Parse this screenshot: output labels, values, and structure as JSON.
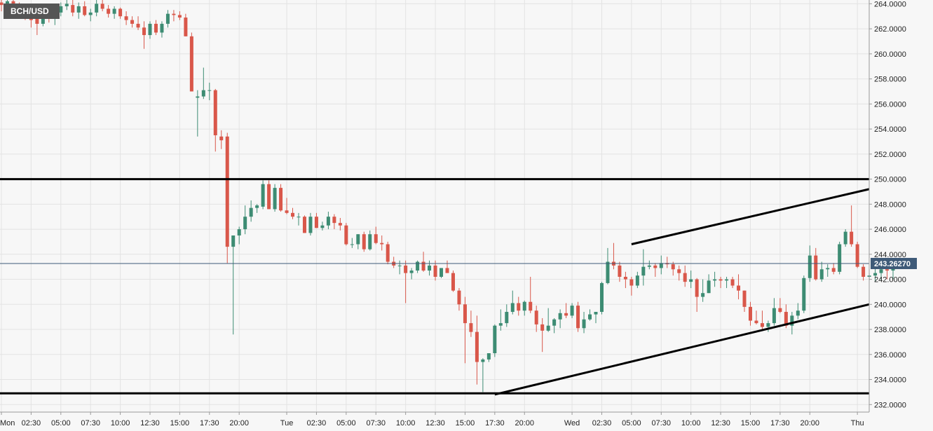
{
  "symbol": "BCH/USD",
  "chart_data": {
    "type": "candlestick",
    "ylim": [
      231.4,
      264.3
    ],
    "y_ticks": [
      264,
      262,
      260,
      258,
      256,
      254,
      252,
      250,
      248,
      246,
      244,
      242,
      240,
      238,
      236,
      234,
      232
    ],
    "y_tick_labels": [
      "264.0000",
      "262.0000",
      "260.0000",
      "258.0000",
      "256.0000",
      "254.0000",
      "252.0000",
      "250.0000",
      "248.0000",
      "246.0000",
      "244.0000",
      "242.0000",
      "240.0000",
      "238.0000",
      "236.0000",
      "234.0000",
      "232.0000"
    ],
    "x_labels": [
      "Mon",
      "02:30",
      "05:00",
      "07:30",
      "10:00",
      "12:30",
      "15:00",
      "17:30",
      "20:00",
      "Tue",
      "02:30",
      "05:00",
      "07:30",
      "10:00",
      "12:30",
      "15:00",
      "17:30",
      "20:00",
      "Wed",
      "02:30",
      "05:00",
      "07:30",
      "10:00",
      "12:30",
      "15:00",
      "17:30",
      "20:00",
      "Thu"
    ],
    "x_label_index": [
      0,
      5,
      10,
      15,
      20,
      25,
      30,
      35,
      40,
      48,
      53,
      58,
      63,
      68,
      73,
      78,
      83,
      88,
      96,
      101,
      106,
      111,
      116,
      121,
      126,
      131,
      136,
      144
    ],
    "candles": [
      [
        264.1,
        264.4,
        263.4,
        263.9
      ],
      [
        264.0,
        264.4,
        263.6,
        264.2
      ],
      [
        264.2,
        264.6,
        263.7,
        264.0
      ],
      [
        263.9,
        264.1,
        263.2,
        263.6
      ],
      [
        263.6,
        263.9,
        262.7,
        263.1
      ],
      [
        263.3,
        263.8,
        262.1,
        262.7
      ],
      [
        262.8,
        263.1,
        261.5,
        262.4
      ],
      [
        262.4,
        263.4,
        262.2,
        263.1
      ],
      [
        263.1,
        263.6,
        262.5,
        262.9
      ],
      [
        262.9,
        263.4,
        262.3,
        263.3
      ],
      [
        263.3,
        264.1,
        263.0,
        263.8
      ],
      [
        263.8,
        264.6,
        263.5,
        264.0
      ],
      [
        263.9,
        264.3,
        263.0,
        263.3
      ],
      [
        263.3,
        264.1,
        262.8,
        263.8
      ],
      [
        263.8,
        264.2,
        263.0,
        263.1
      ],
      [
        263.1,
        263.6,
        262.6,
        263.3
      ],
      [
        263.3,
        264.3,
        263.0,
        264.0
      ],
      [
        264.0,
        264.4,
        263.4,
        263.6
      ],
      [
        263.6,
        263.9,
        262.9,
        263.2
      ],
      [
        263.2,
        263.8,
        262.8,
        263.6
      ],
      [
        263.6,
        263.7,
        262.8,
        263.0
      ],
      [
        263.0,
        263.4,
        262.3,
        262.7
      ],
      [
        262.7,
        263.0,
        262.1,
        262.4
      ],
      [
        262.4,
        263.0,
        261.9,
        262.1
      ],
      [
        262.1,
        262.6,
        260.4,
        261.5
      ],
      [
        261.5,
        262.6,
        261.2,
        262.4
      ],
      [
        262.4,
        262.7,
        261.5,
        261.7
      ],
      [
        261.7,
        262.6,
        261.3,
        262.4
      ],
      [
        262.4,
        263.5,
        262.1,
        263.2
      ],
      [
        263.2,
        263.5,
        262.6,
        263.1
      ],
      [
        263.1,
        263.4,
        262.7,
        262.9
      ],
      [
        262.9,
        263.2,
        261.4,
        261.4
      ],
      [
        261.4,
        261.7,
        257.0,
        257.0
      ],
      [
        256.5,
        257.1,
        253.4,
        256.6
      ],
      [
        256.6,
        258.9,
        256.4,
        257.1
      ],
      [
        257.1,
        257.7,
        256.3,
        257.1
      ],
      [
        257.1,
        257.2,
        252.2,
        253.5
      ],
      [
        253.4,
        253.9,
        252.4,
        253.1
      ],
      [
        253.4,
        253.7,
        243.3,
        244.6
      ],
      [
        244.6,
        245.5,
        237.6,
        245.5
      ],
      [
        245.5,
        246.2,
        244.8,
        246.0
      ],
      [
        246.0,
        247.9,
        245.6,
        247.0
      ],
      [
        247.0,
        248.3,
        246.6,
        247.7
      ],
      [
        247.7,
        248.0,
        247.3,
        247.9
      ],
      [
        247.8,
        249.9,
        247.6,
        249.6
      ],
      [
        249.6,
        249.9,
        247.6,
        247.6
      ],
      [
        247.6,
        249.6,
        247.4,
        249.3
      ],
      [
        249.3,
        249.6,
        247.4,
        247.5
      ],
      [
        247.5,
        248.5,
        247.2,
        247.3
      ],
      [
        247.3,
        247.7,
        246.8,
        247.0
      ],
      [
        247.0,
        247.3,
        246.3,
        247.0
      ],
      [
        247.0,
        247.1,
        245.7,
        245.7
      ],
      [
        245.7,
        247.3,
        245.5,
        247.0
      ],
      [
        247.0,
        247.3,
        246.1,
        246.1
      ],
      [
        246.1,
        246.6,
        245.9,
        246.3
      ],
      [
        246.3,
        247.4,
        246.0,
        247.0
      ],
      [
        247.0,
        247.2,
        246.0,
        246.5
      ],
      [
        246.5,
        246.9,
        245.9,
        246.3
      ],
      [
        246.3,
        246.5,
        244.7,
        244.8
      ],
      [
        244.8,
        245.3,
        244.5,
        244.8
      ],
      [
        244.8,
        245.6,
        244.4,
        245.6
      ],
      [
        245.6,
        245.8,
        244.2,
        244.4
      ],
      [
        244.4,
        245.9,
        244.3,
        245.6
      ],
      [
        245.6,
        246.2,
        244.8,
        244.9
      ],
      [
        244.9,
        245.5,
        244.3,
        244.8
      ],
      [
        244.8,
        245.0,
        243.2,
        243.4
      ],
      [
        243.4,
        243.8,
        242.9,
        243.1
      ],
      [
        243.1,
        243.5,
        242.4,
        243.1
      ],
      [
        243.1,
        243.5,
        240.1,
        242.5
      ],
      [
        242.5,
        242.9,
        242.0,
        242.7
      ],
      [
        242.7,
        243.5,
        242.5,
        243.4
      ],
      [
        243.4,
        244.2,
        242.6,
        242.7
      ],
      [
        242.7,
        243.5,
        242.3,
        243.1
      ],
      [
        243.1,
        243.5,
        241.9,
        242.2
      ],
      [
        242.2,
        242.9,
        242.1,
        242.9
      ],
      [
        242.9,
        243.5,
        242.6,
        242.5
      ],
      [
        242.5,
        242.7,
        241.0,
        241.1
      ],
      [
        241.1,
        241.3,
        239.5,
        240.0
      ],
      [
        240.0,
        240.6,
        235.3,
        238.5
      ],
      [
        238.5,
        239.5,
        237.4,
        237.8
      ],
      [
        237.8,
        239.1,
        233.6,
        235.4
      ],
      [
        235.4,
        235.7,
        233.0,
        235.6
      ],
      [
        235.6,
        236.1,
        235.4,
        236.1
      ],
      [
        236.1,
        238.4,
        235.8,
        238.3
      ],
      [
        238.3,
        239.6,
        237.9,
        238.5
      ],
      [
        238.5,
        240.0,
        238.2,
        239.4
      ],
      [
        239.4,
        241.1,
        239.2,
        240.1
      ],
      [
        240.1,
        240.6,
        239.1,
        239.5
      ],
      [
        239.5,
        240.3,
        239.1,
        240.2
      ],
      [
        240.2,
        242.2,
        239.3,
        239.5
      ],
      [
        239.5,
        239.9,
        237.8,
        238.4
      ],
      [
        238.4,
        238.9,
        236.2,
        237.9
      ],
      [
        237.9,
        239.7,
        237.8,
        238.3
      ],
      [
        238.3,
        238.9,
        237.7,
        238.8
      ],
      [
        238.8,
        239.6,
        238.1,
        239.3
      ],
      [
        239.3,
        240.1,
        238.9,
        239.1
      ],
      [
        239.1,
        240.1,
        238.9,
        239.9
      ],
      [
        239.9,
        240.2,
        237.8,
        238.1
      ],
      [
        238.1,
        239.4,
        237.7,
        238.8
      ],
      [
        238.8,
        239.6,
        238.7,
        239.2
      ],
      [
        239.2,
        239.4,
        238.5,
        239.4
      ],
      [
        239.4,
        241.8,
        239.2,
        241.7
      ],
      [
        241.7,
        244.5,
        241.6,
        243.4
      ],
      [
        243.4,
        244.9,
        242.8,
        243.1
      ],
      [
        243.1,
        243.4,
        241.8,
        242.2
      ],
      [
        242.2,
        242.6,
        241.3,
        242.0
      ],
      [
        242.0,
        242.2,
        240.7,
        241.5
      ],
      [
        241.5,
        242.6,
        241.3,
        242.3
      ],
      [
        242.3,
        244.4,
        241.5,
        243.0
      ],
      [
        243.0,
        243.5,
        242.8,
        243.1
      ],
      [
        243.1,
        243.3,
        242.2,
        242.9
      ],
      [
        242.9,
        243.9,
        242.4,
        243.3
      ],
      [
        243.3,
        243.8,
        242.9,
        243.2
      ],
      [
        243.2,
        243.4,
        242.3,
        242.8
      ],
      [
        242.8,
        243.1,
        241.9,
        242.5
      ],
      [
        242.5,
        243.1,
        241.4,
        241.8
      ],
      [
        241.8,
        242.7,
        241.3,
        242.0
      ],
      [
        242.0,
        242.1,
        239.4,
        240.6
      ],
      [
        240.6,
        242.0,
        240.2,
        240.9
      ],
      [
        240.9,
        242.4,
        240.9,
        241.9
      ],
      [
        241.9,
        242.6,
        241.4,
        242.0
      ],
      [
        242.0,
        242.2,
        241.3,
        241.9
      ],
      [
        241.9,
        242.2,
        241.3,
        242.0
      ],
      [
        242.0,
        242.2,
        241.3,
        241.5
      ],
      [
        241.5,
        242.4,
        240.4,
        241.1
      ],
      [
        241.1,
        241.1,
        239.4,
        239.8
      ],
      [
        239.8,
        240.2,
        238.3,
        238.7
      ],
      [
        238.7,
        239.5,
        238.4,
        238.5
      ],
      [
        238.5,
        239.5,
        237.9,
        238.2
      ],
      [
        238.2,
        238.7,
        237.8,
        238.5
      ],
      [
        238.5,
        240.5,
        238.3,
        239.7
      ],
      [
        239.7,
        240.5,
        239.3,
        239.4
      ],
      [
        239.4,
        240.0,
        238.1,
        238.3
      ],
      [
        238.3,
        239.4,
        237.6,
        239.1
      ],
      [
        239.1,
        240.1,
        238.8,
        239.5
      ],
      [
        239.5,
        242.3,
        239.3,
        242.1
      ],
      [
        242.1,
        244.7,
        241.8,
        243.9
      ],
      [
        243.9,
        244.5,
        241.9,
        242.0
      ],
      [
        242.0,
        243.4,
        241.8,
        242.8
      ],
      [
        242.8,
        243.2,
        242.2,
        242.9
      ],
      [
        242.9,
        243.3,
        242.4,
        242.6
      ],
      [
        242.6,
        245.0,
        242.4,
        244.8
      ],
      [
        244.8,
        246.0,
        244.6,
        245.8
      ],
      [
        245.8,
        247.9,
        244.6,
        244.8
      ],
      [
        244.8,
        245.0,
        242.9,
        243.0
      ],
      [
        243.0,
        243.2,
        241.9,
        242.2
      ],
      [
        242.2,
        242.5,
        241.9,
        242.3
      ],
      [
        242.3,
        243.1,
        241.8,
        242.5
      ],
      [
        242.5,
        243.1,
        241.9,
        242.8
      ],
      [
        242.8,
        242.9,
        242.0,
        242.7
      ],
      [
        242.7,
        243.1,
        242.0,
        243.0
      ],
      [
        243.0,
        243.3,
        242.9,
        243.3
      ]
    ],
    "last_price": 243.2627,
    "last_price_label": "243.26270",
    "horizontal_levels": [
      250.0,
      232.9
    ],
    "trendlines": [
      {
        "name": "upper",
        "from": {
          "index": 106,
          "price": 244.8
        },
        "to": {
          "index": "right-edge",
          "price": 249.2
        }
      },
      {
        "name": "lower",
        "from": {
          "index": 83,
          "price": 232.8
        },
        "to": {
          "index": "right-edge",
          "price": 240.0
        }
      }
    ],
    "colors": {
      "up": "#3d8c73",
      "down": "#d9574a",
      "price_line": "#3e5a78",
      "price_label_bg": "#3e5a78",
      "level_line": "#000000",
      "grid": "#e3e3e3"
    },
    "grid": true
  }
}
